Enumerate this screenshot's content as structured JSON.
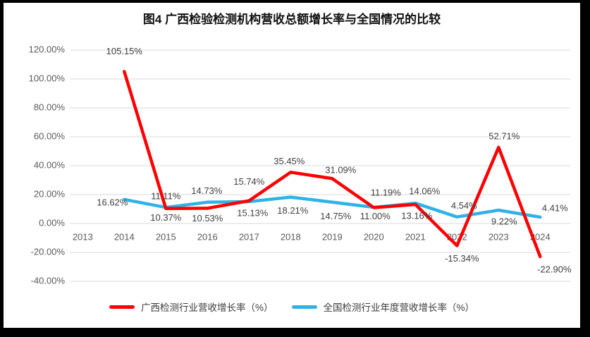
{
  "title": "图4 广西检验检测机构营收总额增长率与全国情况的比较",
  "chart_data": {
    "type": "line",
    "title": "图4 广西检验检测机构营收总额增长率与全国情况的比较",
    "categories": [
      "2013",
      "2014",
      "2015",
      "2016",
      "2017",
      "2018",
      "2019",
      "2020",
      "2021",
      "2022",
      "2023",
      "2024"
    ],
    "ylim": [
      -40,
      120
    ],
    "y_tick_step": 20,
    "grid": true,
    "legend_position": "bottom",
    "y_ticks": [
      {
        "v": 120,
        "label": "120.00%"
      },
      {
        "v": 100,
        "label": "100.00%"
      },
      {
        "v": 80,
        "label": "80.00%"
      },
      {
        "v": 60,
        "label": "60.00%"
      },
      {
        "v": 40,
        "label": "40.00%"
      },
      {
        "v": 20,
        "label": "20.00%"
      },
      {
        "v": 0,
        "label": "0.00%"
      },
      {
        "v": -20,
        "label": "-20.00%"
      },
      {
        "v": -40,
        "label": "-40.00%"
      }
    ],
    "series": [
      {
        "name": "广西检测行业营收增长率（%）",
        "color": "#FF0000",
        "values": [
          null,
          105.15,
          10.37,
          10.53,
          15.74,
          35.45,
          31.09,
          11.0,
          13.16,
          -15.34,
          52.71,
          -22.9
        ],
        "labels": [
          null,
          {
            "text": "105.15%",
            "pos": "above",
            "dy": -13
          },
          {
            "text": "10.37%",
            "pos": "below",
            "dy": -3
          },
          {
            "text": "10.53%",
            "pos": "below",
            "dy": -2
          },
          {
            "text": "15.74%",
            "pos": "above",
            "dy": -11
          },
          {
            "text": "35.45%",
            "pos": "above",
            "dx": -2
          },
          {
            "text": "31.09%",
            "pos": "above",
            "dx": 12,
            "dy": 4
          },
          {
            "text": "11.00%",
            "pos": "below",
            "dx": 2,
            "dy": -4
          },
          {
            "text": "13.16%",
            "pos": "below",
            "dx": 2
          },
          {
            "text": "-15.34%",
            "pos": "below",
            "dx": 7,
            "dy": 2
          },
          {
            "text": "52.71%",
            "pos": "above",
            "dx": 8
          },
          {
            "text": "-22.90%",
            "pos": "below",
            "dx": 20,
            "dy": 2
          }
        ]
      },
      {
        "name": "全国检测行业年度营收增长率（%）",
        "color": "#2EB2E8",
        "values": [
          null,
          16.62,
          11.11,
          14.73,
          15.13,
          18.21,
          14.75,
          11.19,
          14.06,
          4.54,
          9.22,
          4.41
        ],
        "labels": [
          null,
          {
            "text": "16.62%",
            "pos": "left"
          },
          {
            "text": "11.11%",
            "pos": "above"
          },
          {
            "text": "14.73%",
            "pos": "above",
            "dx": -1
          },
          {
            "text": "15.13%",
            "pos": "below",
            "dx": 5
          },
          {
            "text": "18.21%",
            "pos": "below",
            "dx": 3,
            "dy": 3
          },
          {
            "text": "14.75%",
            "pos": "below",
            "dx": 5,
            "dy": 4
          },
          {
            "text": "11.19%",
            "pos": "above",
            "dx": 17,
            "dy": -5
          },
          {
            "text": "14.06%",
            "pos": "above",
            "dx": 13,
            "dy": -1
          },
          {
            "text": "4.54%",
            "pos": "above",
            "dx": 10
          },
          {
            "text": "9.22%",
            "pos": "below",
            "dx": 8
          },
          {
            "text": "4.41%",
            "pos": "above",
            "dx": 21,
            "dy": 3
          }
        ]
      }
    ]
  },
  "legend": [
    {
      "label": "广西检测行业营收增长率（%）",
      "color": "#FF0000"
    },
    {
      "label": "全国检测行业年度营收增长率（%）",
      "color": "#2EB2E8"
    }
  ],
  "colors": {
    "grid": "#D9D9D9",
    "axis_text": "#595959",
    "data_label": "#3F3F3F",
    "frame": "#000000",
    "background": "#FFFFFF"
  }
}
